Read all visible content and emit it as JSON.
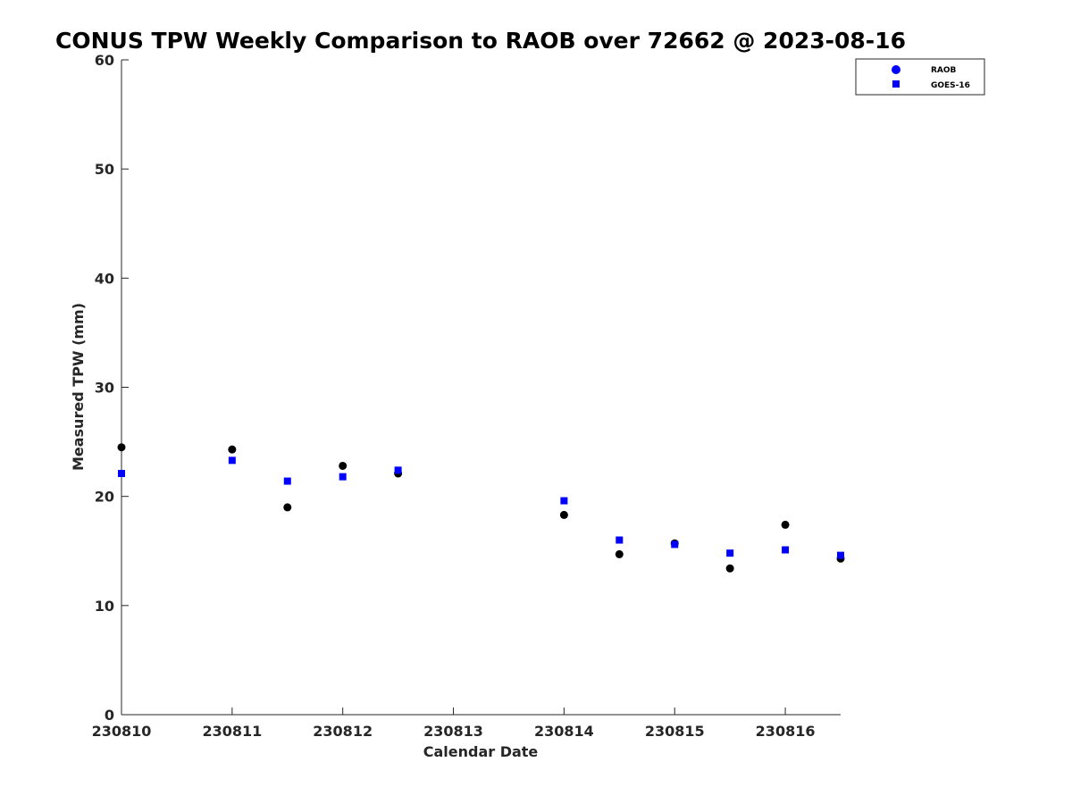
{
  "chart_data": {
    "type": "scatter",
    "title": "CONUS TPW Weekly Comparison to RAOB over 72662 @ 2023-08-16",
    "xlabel": "Calendar Date",
    "ylabel": "Measured TPW (mm)",
    "xlim": [
      "2023-08-10 00:00",
      "2023-08-16 12:00"
    ],
    "ylim": [
      0,
      60
    ],
    "x_ticks": [
      {
        "value": "2023-08-10 00:00",
        "label": "230810"
      },
      {
        "value": "2023-08-11 00:00",
        "label": "230811"
      },
      {
        "value": "2023-08-12 00:00",
        "label": "230812"
      },
      {
        "value": "2023-08-13 00:00",
        "label": "230813"
      },
      {
        "value": "2023-08-14 00:00",
        "label": "230814"
      },
      {
        "value": "2023-08-15 00:00",
        "label": "230815"
      },
      {
        "value": "2023-08-16 00:00",
        "label": "230816"
      }
    ],
    "y_ticks": [
      "0",
      "10",
      "20",
      "30",
      "40",
      "50",
      "60"
    ],
    "grid": false,
    "legend_position": "top-right",
    "series": [
      {
        "name": "RAOB",
        "marker": "circle",
        "color": "#000000",
        "legend_color": "#0000ff",
        "points": [
          {
            "x": "2023-08-10 00:00",
            "y": 24.5
          },
          {
            "x": "2023-08-11 00:00",
            "y": 24.3
          },
          {
            "x": "2023-08-11 12:00",
            "y": 19.0
          },
          {
            "x": "2023-08-12 00:00",
            "y": 22.8
          },
          {
            "x": "2023-08-12 12:00",
            "y": 22.1
          },
          {
            "x": "2023-08-14 00:00",
            "y": 18.3
          },
          {
            "x": "2023-08-14 12:00",
            "y": 14.7
          },
          {
            "x": "2023-08-15 00:00",
            "y": 15.7
          },
          {
            "x": "2023-08-15 12:00",
            "y": 13.4
          },
          {
            "x": "2023-08-16 00:00",
            "y": 17.4
          },
          {
            "x": "2023-08-16 12:00",
            "y": 14.3
          }
        ]
      },
      {
        "name": "GOES-16",
        "marker": "square",
        "color": "#0000ff",
        "legend_color": "#0000ff",
        "points": [
          {
            "x": "2023-08-10 00:00",
            "y": 22.1
          },
          {
            "x": "2023-08-11 00:00",
            "y": 23.3
          },
          {
            "x": "2023-08-11 12:00",
            "y": 21.4
          },
          {
            "x": "2023-08-12 00:00",
            "y": 21.8
          },
          {
            "x": "2023-08-12 12:00",
            "y": 22.4
          },
          {
            "x": "2023-08-14 00:00",
            "y": 19.6
          },
          {
            "x": "2023-08-14 12:00",
            "y": 16.0
          },
          {
            "x": "2023-08-15 00:00",
            "y": 15.6
          },
          {
            "x": "2023-08-15 12:00",
            "y": 14.8
          },
          {
            "x": "2023-08-16 00:00",
            "y": 15.1
          },
          {
            "x": "2023-08-16 12:00",
            "y": 14.6
          }
        ]
      }
    ]
  }
}
